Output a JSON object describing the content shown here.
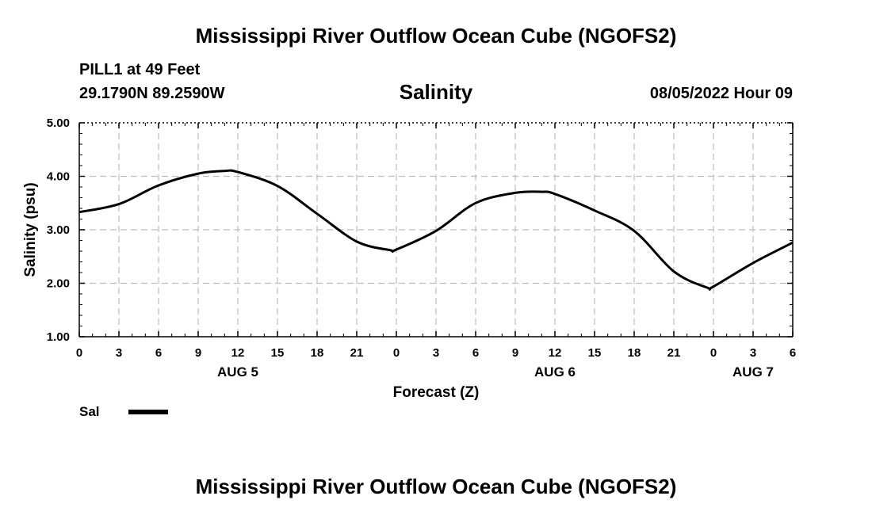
{
  "header": {
    "title": "Mississippi River Outflow Ocean Cube (NGOFS2)",
    "station": "PILL1 at 49 Feet",
    "coords": "29.1790N  89.2590W",
    "subtitle": "Salinity",
    "timestamp": "08/05/2022 Hour 09"
  },
  "footer": {
    "title": "Mississippi River Outflow Ocean Cube (NGOFS2)"
  },
  "legend": {
    "label": "Sal",
    "color": "#000000"
  },
  "chart_data": {
    "type": "line",
    "title": "Salinity",
    "xlabel": "Forecast (Z)",
    "ylabel": "Salinity (psu)",
    "xlim": [
      0,
      54
    ],
    "ylim": [
      1.0,
      5.0
    ],
    "yticks": [
      "1.00",
      "2.00",
      "3.00",
      "4.00",
      "5.00"
    ],
    "xticks": [
      {
        "x": 0,
        "label": "0"
      },
      {
        "x": 3,
        "label": "3"
      },
      {
        "x": 6,
        "label": "6"
      },
      {
        "x": 9,
        "label": "9"
      },
      {
        "x": 12,
        "label": "12"
      },
      {
        "x": 15,
        "label": "15"
      },
      {
        "x": 18,
        "label": "18"
      },
      {
        "x": 21,
        "label": "21"
      },
      {
        "x": 24,
        "label": "0"
      },
      {
        "x": 27,
        "label": "3"
      },
      {
        "x": 30,
        "label": "6"
      },
      {
        "x": 33,
        "label": "9"
      },
      {
        "x": 36,
        "label": "12"
      },
      {
        "x": 39,
        "label": "15"
      },
      {
        "x": 42,
        "label": "18"
      },
      {
        "x": 45,
        "label": "21"
      },
      {
        "x": 48,
        "label": "0"
      },
      {
        "x": 51,
        "label": "3"
      },
      {
        "x": 54,
        "label": "6"
      }
    ],
    "day_labels": [
      {
        "x": 12,
        "label": "AUG 5"
      },
      {
        "x": 36,
        "label": "AUG 6"
      },
      {
        "x": 51,
        "label": "AUG 7"
      }
    ],
    "grid": true,
    "series": [
      {
        "name": "Sal",
        "color": "#000000",
        "x": [
          0,
          3,
          6,
          9,
          11,
          12,
          15,
          18,
          21,
          23.5,
          24,
          27,
          30,
          33,
          35,
          36,
          39,
          42,
          45,
          47.5,
          48,
          51,
          54
        ],
        "y": [
          3.33,
          3.48,
          3.83,
          4.05,
          4.1,
          4.08,
          3.82,
          3.3,
          2.78,
          2.62,
          2.63,
          2.98,
          3.5,
          3.69,
          3.71,
          3.67,
          3.36,
          2.98,
          2.22,
          1.92,
          1.94,
          2.38,
          2.76
        ]
      }
    ]
  }
}
